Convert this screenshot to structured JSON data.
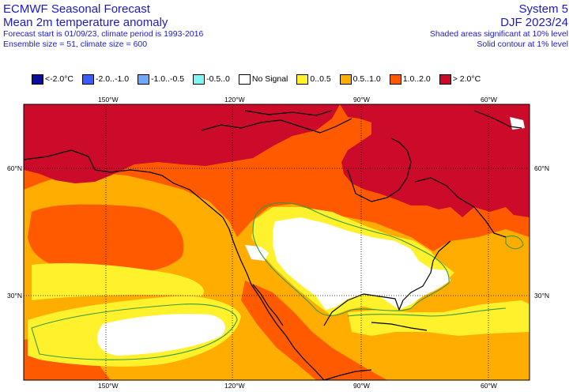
{
  "header": {
    "product": "ECMWF Seasonal Forecast",
    "variable": "Mean 2m temperature anomaly",
    "forecast_info": "Forecast start is 01/09/23, climate period is 1993-2016",
    "ensemble_info": "Ensemble size = 51, climate size = 600",
    "system": "System 5",
    "season": "DJF 2023/24",
    "shading_note": "Shaded areas significant at 10% level",
    "contour_note": "Solid contour at 1% level"
  },
  "legend": [
    {
      "label": "<-2.0°C",
      "color": "#0b0e9a"
    },
    {
      "label": "-2.0..-1.0",
      "color": "#3b5cff"
    },
    {
      "label": "-1.0..-0.5",
      "color": "#6fa8ff"
    },
    {
      "label": "-0.5..0",
      "color": "#7ff6f3"
    },
    {
      "label": "No Signal",
      "color": "#ffffff"
    },
    {
      "label": "0..0.5",
      "color": "#fff12b"
    },
    {
      "label": "0.5..1.0",
      "color": "#ffad00"
    },
    {
      "label": "1.0..2.0",
      "color": "#ff5a00"
    },
    {
      "label": "> 2.0°C",
      "color": "#cc0a2a"
    }
  ],
  "map": {
    "lon_ticks_top": [
      "150°W",
      "120°W",
      "90°W",
      "60°W"
    ],
    "lon_ticks_bottom": [
      "150°W",
      "120°W",
      "90°W",
      "60°W"
    ],
    "lat_ticks_left": [
      "60°N",
      "30°N"
    ],
    "lat_ticks_right": [
      "60°N",
      "30°N"
    ],
    "colors": {
      "gt2": "#cc0a2a",
      "c1to2": "#ff5a00",
      "c05to1": "#ffad00",
      "c0to05": "#fff12b",
      "nosignal": "#ffffff",
      "coast": "#000000",
      "contour": "#3a9a3a",
      "grid": "#000000"
    }
  }
}
